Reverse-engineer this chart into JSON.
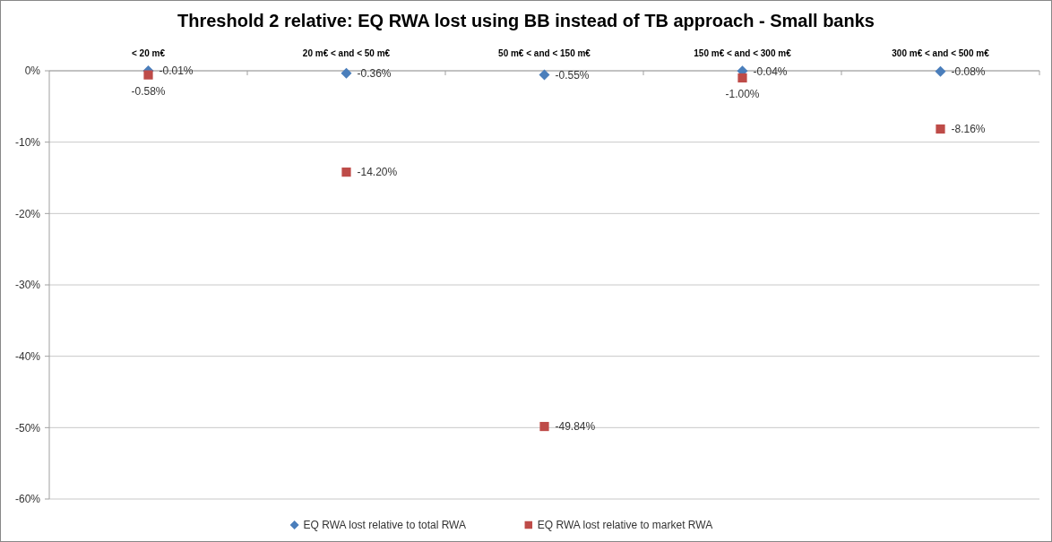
{
  "chart_data": {
    "type": "scatter",
    "title": "Threshold 2 relative: EQ RWA lost using BB instead of TB approach - Small banks",
    "categories": [
      "< 20 m€",
      "20 m€ < and < 50 m€",
      "50 m€ < and < 150 m€",
      "150 m€ < and < 300 m€",
      "300 m€ < and < 500 m€"
    ],
    "series": [
      {
        "name": "EQ RWA lost relative to total RWA",
        "color": "#4a7ebb",
        "marker": "diamond",
        "values": [
          -0.01,
          -0.36,
          -0.55,
          -0.04,
          -0.08
        ],
        "value_labels": [
          "-0.01%",
          "-0.36%",
          "-0.55%",
          "-0.04%",
          "-0.08%"
        ]
      },
      {
        "name": "EQ RWA lost relative to market RWA",
        "color": "#be4b48",
        "marker": "square",
        "values": [
          -0.58,
          -14.2,
          -49.84,
          -1.0,
          -8.16
        ],
        "value_labels": [
          "-0.58%",
          "-14.20%",
          "-49.84%",
          "-1.00%",
          "-8.16%"
        ]
      }
    ],
    "ylim": [
      -60,
      0
    ],
    "yticks": [
      {
        "value": 0,
        "label": "0%"
      },
      {
        "value": -10,
        "label": "-10%"
      },
      {
        "value": -20,
        "label": "-20%"
      },
      {
        "value": -30,
        "label": "-30%"
      },
      {
        "value": -40,
        "label": "-40%"
      },
      {
        "value": -50,
        "label": "-50%"
      },
      {
        "value": -60,
        "label": "-60%"
      }
    ],
    "grid": "y",
    "legend": "bottom"
  }
}
